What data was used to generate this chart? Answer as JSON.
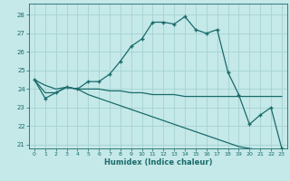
{
  "xlabel": "Humidex (Indice chaleur)",
  "background_color": "#c5e8e8",
  "grid_color": "#9fcfcf",
  "line_color": "#1a6b6b",
  "xlim": [
    -0.5,
    23.5
  ],
  "ylim": [
    20.8,
    28.6
  ],
  "yticks": [
    21,
    22,
    23,
    24,
    25,
    26,
    27,
    28
  ],
  "xticks": [
    0,
    1,
    2,
    3,
    4,
    5,
    6,
    7,
    8,
    9,
    10,
    11,
    12,
    13,
    14,
    15,
    16,
    17,
    18,
    19,
    20,
    21,
    22,
    23
  ],
  "series1": [
    24.5,
    23.5,
    23.8,
    24.1,
    24.0,
    24.4,
    24.4,
    24.8,
    25.5,
    26.3,
    26.7,
    27.6,
    27.6,
    27.5,
    27.9,
    27.2,
    27.0,
    27.2,
    24.9,
    23.7,
    22.1,
    22.6,
    23.0,
    20.8
  ],
  "series2": [
    24.5,
    24.2,
    24.0,
    24.1,
    24.0,
    24.0,
    24.0,
    23.9,
    23.9,
    23.8,
    23.8,
    23.7,
    23.7,
    23.7,
    23.6,
    23.6,
    23.6,
    23.6,
    23.6,
    23.6,
    23.6,
    23.6,
    23.6,
    23.6
  ],
  "series3": [
    24.5,
    23.8,
    23.8,
    24.1,
    24.0,
    23.7,
    23.5,
    23.3,
    23.1,
    22.9,
    22.7,
    22.5,
    22.3,
    22.1,
    21.9,
    21.7,
    21.5,
    21.3,
    21.1,
    20.9,
    20.8,
    20.7,
    20.7,
    20.7
  ]
}
